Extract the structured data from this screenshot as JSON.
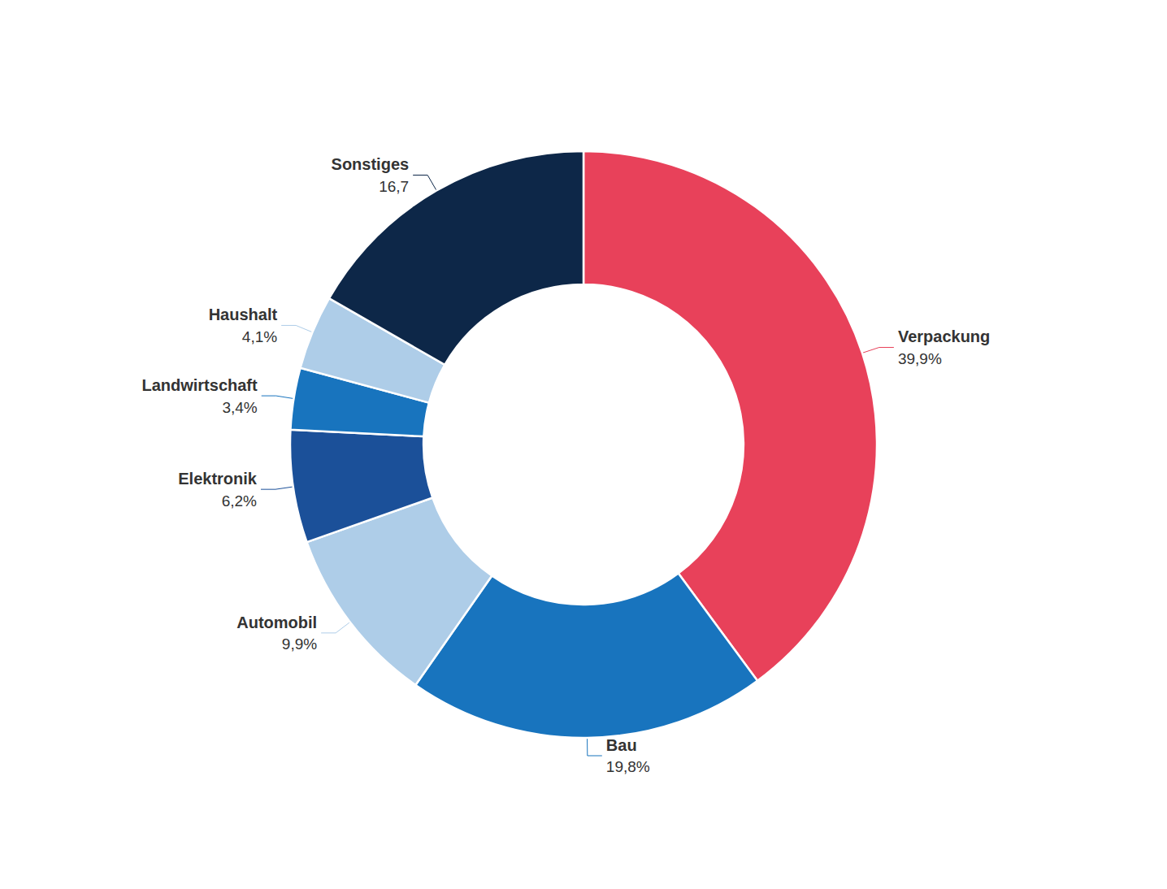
{
  "chart_data": {
    "type": "pie",
    "categories": [
      "Verpackung",
      "Bau",
      "Automobil",
      "Elektronik",
      "Landwirtschaft",
      "Haushalt",
      "Sonstiges"
    ],
    "values": [
      39.9,
      19.8,
      9.9,
      6.2,
      3.4,
      4.1,
      16.7
    ],
    "value_labels": [
      "39,9%",
      "19,8%",
      "9,9%",
      "6,2%",
      "3,4%",
      "4,1%",
      "16,7"
    ],
    "colors": [
      "#E8415A",
      "#1874BE",
      "#AECDE8",
      "#1B5099",
      "#1874BE",
      "#AECDE8",
      "#0D2748"
    ],
    "data_labels": true,
    "legend": false
  }
}
